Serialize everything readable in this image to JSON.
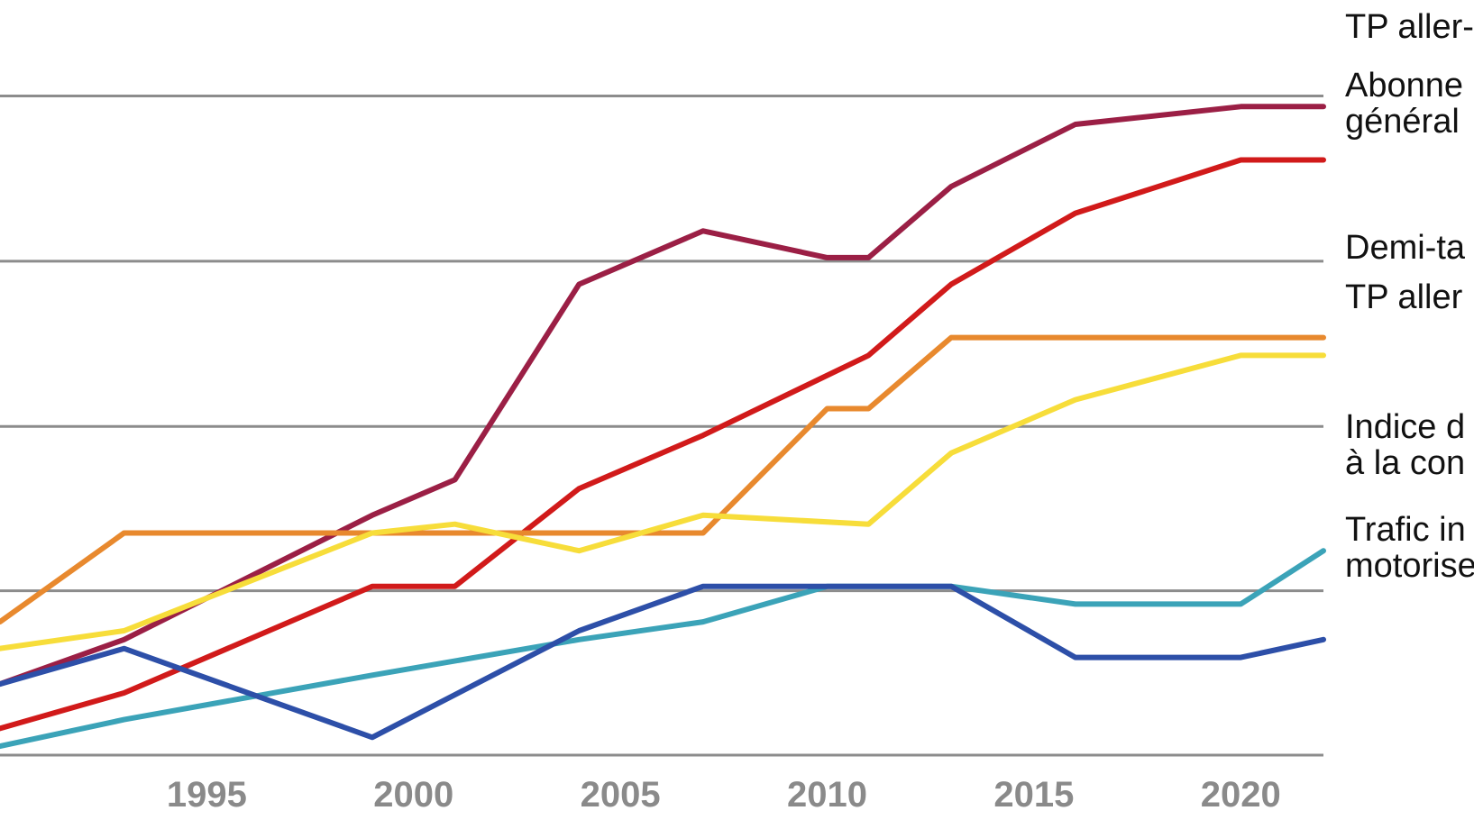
{
  "chart_data": {
    "type": "line",
    "title": "",
    "xlabel": "",
    "ylabel": "",
    "xlim": [
      1990,
      2022
    ],
    "ylim": [
      90,
      175
    ],
    "grid": "horizontal",
    "x_ticks": [
      "1995",
      "2000",
      "2005",
      "2010",
      "2015",
      "2020"
    ],
    "series": [
      {
        "name": "TP aller-",
        "color": "#9b1f45",
        "points": [
          [
            1990,
            98
          ],
          [
            1993,
            103
          ],
          [
            1999,
            117
          ],
          [
            2001,
            121
          ],
          [
            2004,
            143
          ],
          [
            2007,
            149
          ],
          [
            2010,
            146
          ],
          [
            2011,
            146
          ],
          [
            2013,
            154
          ],
          [
            2016,
            161
          ],
          [
            2020,
            163
          ],
          [
            2022,
            163
          ]
        ]
      },
      {
        "name": "Abonne\ngénéral",
        "color": "#d11a1a",
        "points": [
          [
            1990,
            93
          ],
          [
            1993,
            97
          ],
          [
            1999,
            109
          ],
          [
            2001,
            109
          ],
          [
            2004,
            120
          ],
          [
            2007,
            126
          ],
          [
            2011,
            135
          ],
          [
            2013,
            143
          ],
          [
            2016,
            151
          ],
          [
            2020,
            157
          ],
          [
            2022,
            157
          ]
        ]
      },
      {
        "name": "Demi-ta",
        "color": "#e8892e",
        "points": [
          [
            1990,
            105
          ],
          [
            1993,
            115
          ],
          [
            2007,
            115
          ],
          [
            2010,
            129
          ],
          [
            2011,
            129
          ],
          [
            2013,
            137
          ],
          [
            2022,
            137
          ]
        ]
      },
      {
        "name": "TP aller",
        "color": "#f7dd3a",
        "points": [
          [
            1990,
            102
          ],
          [
            1993,
            104
          ],
          [
            1999,
            115
          ],
          [
            2001,
            116
          ],
          [
            2004,
            113
          ],
          [
            2007,
            117
          ],
          [
            2011,
            116
          ],
          [
            2013,
            124
          ],
          [
            2016,
            130
          ],
          [
            2020,
            135
          ],
          [
            2022,
            135
          ]
        ]
      },
      {
        "name": "Indice d\nà la con",
        "color": "#3ba3b8",
        "points": [
          [
            1990,
            91
          ],
          [
            1993,
            94
          ],
          [
            1999,
            99
          ],
          [
            2004,
            103
          ],
          [
            2007,
            105
          ],
          [
            2010,
            109
          ],
          [
            2013,
            109
          ],
          [
            2016,
            107
          ],
          [
            2020,
            107
          ],
          [
            2022,
            113
          ]
        ]
      },
      {
        "name": "Trafic in\nmotorise",
        "color": "#2d4fa8",
        "points": [
          [
            1990,
            98
          ],
          [
            1993,
            102
          ],
          [
            1999,
            92
          ],
          [
            2004,
            104
          ],
          [
            2007,
            109
          ],
          [
            2010,
            109
          ],
          [
            2013,
            109
          ],
          [
            2016,
            101
          ],
          [
            2020,
            101
          ],
          [
            2022,
            103
          ]
        ]
      }
    ]
  }
}
